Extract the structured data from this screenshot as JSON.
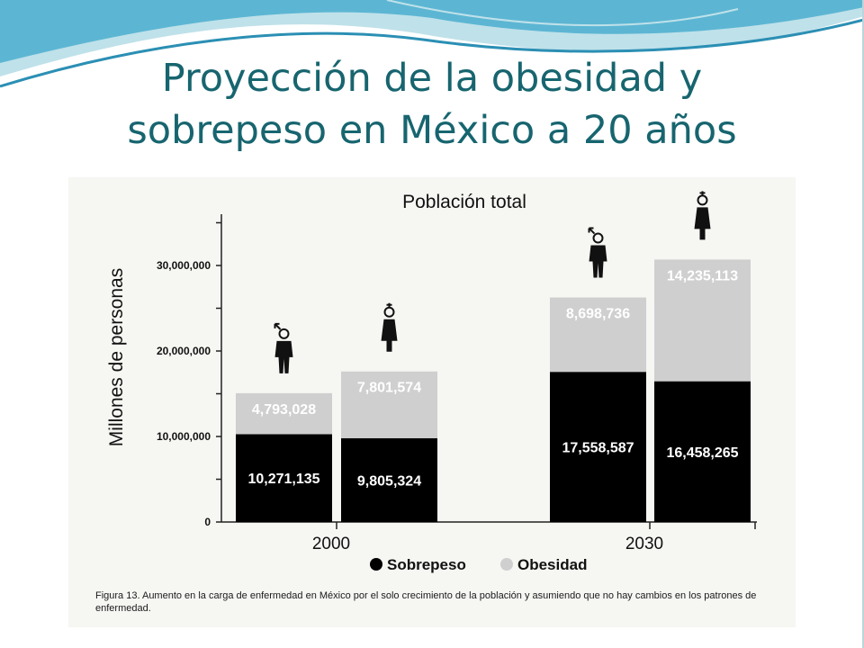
{
  "slide": {
    "title_line1": "Proyección de la obesidad y",
    "title_line2": "sobrepeso en México a 20 años",
    "accent_color": "#17656f",
    "wave_colors": [
      "#bfe1ea",
      "#5cb6d3",
      "#2b8fb4"
    ]
  },
  "chart_data": {
    "type": "bar",
    "stacked": true,
    "title": "Población total",
    "ylabel": "Millones de personas",
    "xlabel": "",
    "ylim": [
      0,
      36000000
    ],
    "yticks": [
      0,
      10000000,
      20000000,
      30000000
    ],
    "ytick_labels": [
      "0",
      "10,000,000",
      "20,000,000",
      "30,000,000"
    ],
    "categories": [
      "2000",
      "2030"
    ],
    "groups": [
      {
        "category": "2000",
        "bars": [
          {
            "sex": "hombre",
            "icon": "male-icon",
            "sobrepeso": 10271135,
            "obesidad": 4793028,
            "sobrepeso_label": "10,271,135",
            "obesidad_label": "4,793,028"
          },
          {
            "sex": "mujer",
            "icon": "female-icon",
            "sobrepeso": 9805324,
            "obesidad": 7801574,
            "sobrepeso_label": "9,805,324",
            "obesidad_label": "7,801,574"
          }
        ]
      },
      {
        "category": "2030",
        "bars": [
          {
            "sex": "hombre",
            "icon": "male-icon",
            "sobrepeso": 17558587,
            "obesidad": 8698736,
            "sobrepeso_label": "17,558,587",
            "obesidad_label": "8,698,736"
          },
          {
            "sex": "mujer",
            "icon": "female-icon",
            "sobrepeso": 16458265,
            "obesidad": 14235113,
            "sobrepeso_label": "16,458,265",
            "obesidad_label": "14,235,113"
          }
        ]
      }
    ],
    "series": [
      {
        "name": "Sobrepeso",
        "color": "#000000"
      },
      {
        "name": "Obesidad",
        "color": "#cfcfcf"
      }
    ],
    "legend_position": "bottom",
    "grid": false,
    "caption": "Figura 13. Aumento en la carga de enfermedad en México por el solo crecimiento de la población y asumiendo que no hay cambios en los patrones de enfermedad."
  }
}
